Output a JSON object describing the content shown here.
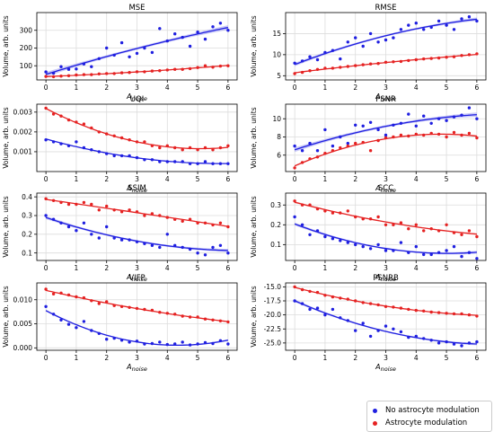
{
  "chart_data": [
    {
      "type": "scatter",
      "title": "MSE",
      "xlabel": "A_noise",
      "ylabel": "Volume, arb. units",
      "xlim": [
        -0.3,
        6.3
      ],
      "ylim": [
        20,
        400
      ],
      "yticks": [
        100,
        200,
        300
      ],
      "grid": true,
      "series": [
        {
          "name": "No astrocyte modulation",
          "x": [
            0,
            0.25,
            0.5,
            0.75,
            1,
            1.25,
            1.5,
            1.75,
            2,
            2.25,
            2.5,
            2.75,
            3,
            3.25,
            3.5,
            3.75,
            4,
            4.25,
            4.5,
            4.75,
            5,
            5.25,
            5.5,
            5.75,
            6
          ],
          "y": [
            65,
            58,
            95,
            80,
            82,
            110,
            95,
            140,
            200,
            160,
            230,
            150,
            170,
            200,
            175,
            310,
            240,
            280,
            260,
            210,
            290,
            250,
            320,
            340,
            300
          ]
        },
        {
          "name": "Astrocyte modulation",
          "x": [
            0,
            0.25,
            0.5,
            0.75,
            1,
            1.25,
            1.5,
            1.75,
            2,
            2.25,
            2.5,
            2.75,
            3,
            3.25,
            3.5,
            3.75,
            4,
            4.25,
            4.5,
            4.75,
            5,
            5.25,
            5.5,
            5.75,
            6
          ],
          "y": [
            40,
            38,
            42,
            44,
            48,
            50,
            50,
            54,
            56,
            56,
            60,
            62,
            66,
            66,
            70,
            72,
            76,
            80,
            80,
            84,
            90,
            100,
            92,
            98,
            100
          ]
        }
      ]
    },
    {
      "type": "scatter",
      "title": "RMSE",
      "xlabel": "A_noise",
      "ylabel": "Volume, arb. units",
      "xlim": [
        -0.3,
        6.3
      ],
      "ylim": [
        4,
        20
      ],
      "yticks": [
        5,
        10,
        15
      ],
      "grid": true,
      "series": [
        {
          "name": "No astrocyte modulation",
          "x": [
            0,
            0.25,
            0.5,
            0.75,
            1,
            1.25,
            1.5,
            1.75,
            2,
            2.25,
            2.5,
            2.75,
            3,
            3.25,
            3.5,
            3.75,
            4,
            4.25,
            4.5,
            4.75,
            5,
            5.25,
            5.5,
            5.75,
            6
          ],
          "y": [
            8,
            8.5,
            9.5,
            8.8,
            10.5,
            11,
            9,
            13,
            14,
            12,
            15,
            13,
            13.5,
            14,
            16,
            17,
            17.5,
            16,
            16.5,
            18,
            17,
            16,
            18.5,
            19,
            18
          ]
        },
        {
          "name": "Astrocyte modulation",
          "x": [
            0,
            0.25,
            0.5,
            0.75,
            1,
            1.25,
            1.5,
            1.75,
            2,
            2.25,
            2.5,
            2.75,
            3,
            3.25,
            3.5,
            3.75,
            4,
            4.25,
            4.5,
            4.75,
            5,
            5.25,
            5.5,
            5.75,
            6
          ],
          "y": [
            5.5,
            5.8,
            6.2,
            6.5,
            6.8,
            6.8,
            7,
            7.2,
            7.4,
            7.6,
            7.8,
            7.9,
            8.2,
            8.3,
            8.4,
            8.6,
            8.8,
            9,
            9.1,
            9.2,
            9.4,
            9.5,
            9.8,
            10,
            10.2
          ]
        }
      ]
    },
    {
      "type": "scatter",
      "title": "UQI",
      "xlabel": "A_noise",
      "ylabel": "Volume, arb. units",
      "xlim": [
        -0.3,
        6.3
      ],
      "ylim": [
        0.0,
        0.0034
      ],
      "yticks": [
        0.001,
        0.002,
        0.003
      ],
      "grid": true,
      "series": [
        {
          "name": "No astrocyte modulation",
          "x": [
            0,
            0.25,
            0.5,
            0.75,
            1,
            1.25,
            1.5,
            1.75,
            2,
            2.25,
            2.5,
            2.75,
            3,
            3.25,
            3.5,
            3.75,
            4,
            4.25,
            4.5,
            4.75,
            5,
            5.25,
            5.5,
            5.75,
            6
          ],
          "y": [
            0.0016,
            0.0015,
            0.0014,
            0.0013,
            0.0015,
            0.0012,
            0.0011,
            0.001,
            0.0009,
            0.0008,
            0.0008,
            0.0008,
            0.0007,
            0.0006,
            0.0006,
            0.0005,
            0.0005,
            0.0005,
            0.0005,
            0.0004,
            0.0004,
            0.0005,
            0.0004,
            0.0004,
            0.0004
          ]
        },
        {
          "name": "Astrocyte modulation",
          "x": [
            0,
            0.25,
            0.5,
            0.75,
            1,
            1.25,
            1.5,
            1.75,
            2,
            2.25,
            2.5,
            2.75,
            3,
            3.25,
            3.5,
            3.75,
            4,
            4.25,
            4.5,
            4.75,
            5,
            5.25,
            5.5,
            5.75,
            6
          ],
          "y": [
            0.0032,
            0.0029,
            0.0028,
            0.0026,
            0.0025,
            0.0024,
            0.0022,
            0.002,
            0.0019,
            0.0018,
            0.0017,
            0.0016,
            0.0015,
            0.0015,
            0.0013,
            0.0012,
            0.0013,
            0.0012,
            0.0011,
            0.0012,
            0.0011,
            0.0012,
            0.0011,
            0.0012,
            0.0013
          ]
        }
      ]
    },
    {
      "type": "scatter",
      "title": "PSNR",
      "xlabel": "A_noise",
      "ylabel": "Volume, arb. units",
      "xlim": [
        -0.3,
        6.3
      ],
      "ylim": [
        4.2,
        11.6
      ],
      "yticks": [
        6,
        8,
        10
      ],
      "grid": true,
      "series": [
        {
          "name": "No astrocyte modulation",
          "x": [
            0,
            0.25,
            0.5,
            0.75,
            1,
            1.25,
            1.5,
            1.75,
            2,
            2.25,
            2.5,
            2.75,
            3,
            3.25,
            3.5,
            3.75,
            4,
            4.25,
            4.5,
            4.75,
            5,
            5.25,
            5.5,
            5.75,
            6
          ],
          "y": [
            7,
            6.5,
            7.3,
            6.5,
            8.8,
            7,
            8,
            7.3,
            9.3,
            9.2,
            9.6,
            8.8,
            8.2,
            9.3,
            9.5,
            10.5,
            9.2,
            10.3,
            9.5,
            10,
            9.8,
            10.2,
            10.4,
            11.2,
            10
          ]
        },
        {
          "name": "Astrocyte modulation",
          "x": [
            0,
            0.25,
            0.5,
            0.75,
            1,
            1.25,
            1.5,
            1.75,
            2,
            2.25,
            2.5,
            2.75,
            3,
            3.25,
            3.5,
            3.75,
            4,
            4.25,
            4.5,
            4.75,
            5,
            5.25,
            5.5,
            5.75,
            6
          ],
          "y": [
            4.6,
            5.2,
            5.6,
            5.8,
            6.2,
            6.5,
            6.8,
            7,
            7.3,
            7.4,
            6.5,
            7.6,
            7.9,
            8,
            8.2,
            8.1,
            8.3,
            8.2,
            8.4,
            8.3,
            8,
            8.5,
            8.2,
            8.4,
            7.9
          ]
        }
      ]
    },
    {
      "type": "scatter",
      "title": "SSIM",
      "xlabel": "A_noise",
      "ylabel": "Volume, arb. units",
      "xlim": [
        -0.3,
        6.3
      ],
      "ylim": [
        0.06,
        0.42
      ],
      "yticks": [
        0.1,
        0.2,
        0.3,
        0.4
      ],
      "grid": true,
      "series": [
        {
          "name": "No astrocyte modulation",
          "x": [
            0,
            0.25,
            0.5,
            0.75,
            1,
            1.25,
            1.5,
            1.75,
            2,
            2.25,
            2.5,
            2.75,
            3,
            3.25,
            3.5,
            3.75,
            4,
            4.25,
            4.5,
            4.75,
            5,
            5.25,
            5.5,
            5.75,
            6
          ],
          "y": [
            0.3,
            0.28,
            0.26,
            0.24,
            0.22,
            0.26,
            0.2,
            0.18,
            0.24,
            0.18,
            0.17,
            0.17,
            0.16,
            0.15,
            0.14,
            0.13,
            0.2,
            0.14,
            0.13,
            0.12,
            0.1,
            0.09,
            0.13,
            0.14,
            0.1
          ]
        },
        {
          "name": "Astrocyte modulation",
          "x": [
            0,
            0.25,
            0.5,
            0.75,
            1,
            1.25,
            1.5,
            1.75,
            2,
            2.25,
            2.5,
            2.75,
            3,
            3.25,
            3.5,
            3.75,
            4,
            4.25,
            4.5,
            4.75,
            5,
            5.25,
            5.5,
            5.75,
            6
          ],
          "y": [
            0.39,
            0.38,
            0.37,
            0.36,
            0.36,
            0.37,
            0.36,
            0.33,
            0.35,
            0.33,
            0.32,
            0.33,
            0.32,
            0.3,
            0.31,
            0.3,
            0.29,
            0.28,
            0.27,
            0.28,
            0.26,
            0.26,
            0.25,
            0.26,
            0.24
          ]
        }
      ]
    },
    {
      "type": "scatter",
      "title": "SCC",
      "xlabel": "A_noise",
      "ylabel": "Volume, arb. units",
      "xlim": [
        -0.3,
        6.3
      ],
      "ylim": [
        0.02,
        0.36
      ],
      "yticks": [
        0.1,
        0.2,
        0.3
      ],
      "grid": true,
      "series": [
        {
          "name": "No astrocyte modulation",
          "x": [
            0,
            0.25,
            0.5,
            0.75,
            1,
            1.25,
            1.5,
            1.75,
            2,
            2.25,
            2.5,
            2.75,
            3,
            3.25,
            3.5,
            3.75,
            4,
            4.25,
            4.5,
            4.75,
            5,
            5.25,
            5.5,
            5.75,
            6
          ],
          "y": [
            0.24,
            0.2,
            0.15,
            0.17,
            0.14,
            0.13,
            0.12,
            0.11,
            0.1,
            0.09,
            0.08,
            0.1,
            0.07,
            0.07,
            0.11,
            0.06,
            0.09,
            0.05,
            0.05,
            0.06,
            0.07,
            0.09,
            0.04,
            0.06,
            0.03
          ]
        },
        {
          "name": "Astrocyte modulation",
          "x": [
            0,
            0.25,
            0.5,
            0.75,
            1,
            1.25,
            1.5,
            1.75,
            2,
            2.25,
            2.5,
            2.75,
            3,
            3.25,
            3.5,
            3.75,
            4,
            4.25,
            4.5,
            4.75,
            5,
            5.25,
            5.5,
            5.75,
            6
          ],
          "y": [
            0.32,
            0.3,
            0.3,
            0.28,
            0.27,
            0.26,
            0.26,
            0.27,
            0.24,
            0.23,
            0.23,
            0.24,
            0.2,
            0.2,
            0.21,
            0.18,
            0.2,
            0.17,
            0.18,
            0.17,
            0.2,
            0.16,
            0.15,
            0.17,
            0.14
          ]
        }
      ]
    },
    {
      "type": "scatter",
      "title": "VIFP",
      "xlabel": "A_noise",
      "ylabel": "Volume, arb. units",
      "xlim": [
        -0.3,
        6.3
      ],
      "ylim": [
        -0.0005,
        0.0135
      ],
      "yticks": [
        0.0,
        0.005,
        0.01
      ],
      "grid": true,
      "series": [
        {
          "name": "No astrocyte modulation",
          "x": [
            0,
            0.25,
            0.5,
            0.75,
            1,
            1.25,
            1.5,
            1.75,
            2,
            2.25,
            2.5,
            2.75,
            3,
            3.25,
            3.5,
            3.75,
            4,
            4.25,
            4.5,
            4.75,
            5,
            5.25,
            5.5,
            5.75,
            6
          ],
          "y": [
            0.0086,
            0.007,
            0.0058,
            0.0049,
            0.0042,
            0.0055,
            0.0036,
            0.003,
            0.0018,
            0.002,
            0.0016,
            0.0012,
            0.0014,
            0.0008,
            0.0009,
            0.0012,
            0.0007,
            0.0008,
            0.0012,
            0.0006,
            0.0008,
            0.0011,
            0.0009,
            0.0015,
            0.0008
          ]
        },
        {
          "name": "Astrocyte modulation",
          "x": [
            0,
            0.25,
            0.5,
            0.75,
            1,
            1.25,
            1.5,
            1.75,
            2,
            2.25,
            2.5,
            2.75,
            3,
            3.25,
            3.5,
            3.75,
            4,
            4.25,
            4.5,
            4.75,
            5,
            5.25,
            5.5,
            5.75,
            6
          ],
          "y": [
            0.0122,
            0.0112,
            0.0114,
            0.011,
            0.0106,
            0.0104,
            0.0098,
            0.0092,
            0.0096,
            0.0088,
            0.0086,
            0.0084,
            0.0082,
            0.008,
            0.0078,
            0.0074,
            0.0072,
            0.007,
            0.0066,
            0.0064,
            0.0064,
            0.006,
            0.0058,
            0.0056,
            0.0054
          ]
        }
      ]
    },
    {
      "type": "scatter",
      "title": "PSNRB",
      "xlabel": "A_noise",
      "ylabel": "Volume, arb. units",
      "xlim": [
        -0.3,
        6.3
      ],
      "ylim": [
        -26.3,
        -14.3
      ],
      "yticks": [
        -25.0,
        -22.5,
        -20.0,
        -17.5,
        -15.0
      ],
      "grid": true,
      "series": [
        {
          "name": "No astrocyte modulation",
          "x": [
            0,
            0.25,
            0.5,
            0.75,
            1,
            1.25,
            1.5,
            1.75,
            2,
            2.25,
            2.5,
            2.75,
            3,
            3.25,
            3.5,
            3.75,
            4,
            4.25,
            4.5,
            4.75,
            5,
            5.25,
            5.5,
            5.75,
            6
          ],
          "y": [
            -17.5,
            -18,
            -19,
            -18.8,
            -20,
            -19,
            -20.5,
            -21,
            -22.8,
            -21.5,
            -23.8,
            -22.8,
            -22,
            -22.5,
            -23,
            -24,
            -23.8,
            -24.2,
            -24.5,
            -25,
            -24.8,
            -25.2,
            -25.5,
            -25,
            -24.8
          ]
        },
        {
          "name": "Astrocyte modulation",
          "x": [
            0,
            0.25,
            0.5,
            0.75,
            1,
            1.25,
            1.5,
            1.75,
            2,
            2.25,
            2.5,
            2.75,
            3,
            3.25,
            3.5,
            3.75,
            4,
            4.25,
            4.5,
            4.75,
            5,
            5.25,
            5.5,
            5.75,
            6
          ],
          "y": [
            -15,
            -15.5,
            -15.8,
            -16,
            -16.5,
            -16.8,
            -17,
            -17.2,
            -17.5,
            -17.8,
            -18,
            -18.2,
            -18.5,
            -18.6,
            -18.8,
            -19,
            -19.2,
            -19.3,
            -19.5,
            -19.6,
            -19.7,
            -19.8,
            -19.8,
            -20,
            -20.2
          ]
        }
      ]
    }
  ],
  "colors": {
    "no_astro": "#1f1fe0",
    "astro": "#e52222",
    "band_no_astro": "#8a8af0",
    "band_astro": "#f08a8a",
    "grid": "#dcdcdc"
  },
  "legend": {
    "items": [
      {
        "label": "No astrocyte modulation",
        "color": "#1f1fe0"
      },
      {
        "label": "Astrocyte modulation",
        "color": "#e52222"
      }
    ]
  }
}
